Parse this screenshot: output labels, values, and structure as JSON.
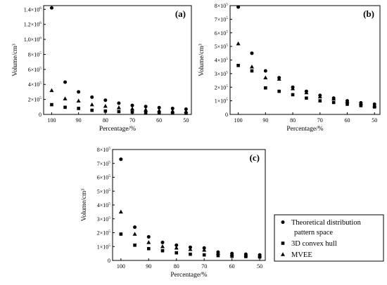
{
  "legend": [
    {
      "marker": "circle",
      "lines": [
        "Theoretical distribution",
        "pattern space"
      ]
    },
    {
      "marker": "square",
      "lines": [
        "3D convex hull"
      ]
    },
    {
      "marker": "triangle",
      "lines": [
        "MVEE"
      ]
    }
  ],
  "chart_data": [
    {
      "type": "scatter",
      "panel_label": "(a)",
      "xlabel": "Percentage/%",
      "ylabel": "Volume/cm³",
      "xlim": [
        103,
        48
      ],
      "ylim": [
        0,
        1450000
      ],
      "xticks": [
        100,
        90,
        80,
        70,
        60,
        50
      ],
      "yticks": [
        0,
        200000,
        400000,
        600000,
        800000,
        1000000,
        1200000,
        1400000
      ],
      "ytick_labels": [
        {
          "m": "0",
          "e": ""
        },
        {
          "m": "2×10",
          "e": "5"
        },
        {
          "m": "4×10",
          "e": "5"
        },
        {
          "m": "6×10",
          "e": "5"
        },
        {
          "m": "8×10",
          "e": "5"
        },
        {
          "m": "1.0×10",
          "e": "6"
        },
        {
          "m": "1.2×10",
          "e": "6"
        },
        {
          "m": "1.4×10",
          "e": "6"
        }
      ],
      "x": [
        100,
        95,
        90,
        85,
        80,
        75,
        70,
        65,
        60,
        55,
        50
      ],
      "series": [
        {
          "name": "Theoretical distribution pattern space",
          "marker": "circle",
          "values": [
            1420000,
            430000,
            300000,
            230000,
            190000,
            150000,
            120000,
            105000,
            90000,
            80000,
            70000
          ]
        },
        {
          "name": "3D convex hull",
          "marker": "square",
          "values": [
            130000,
            95000,
            80000,
            55000,
            45000,
            38000,
            32000,
            26000,
            22000,
            18000,
            15000
          ]
        },
        {
          "name": "MVEE",
          "marker": "triangle",
          "values": [
            320000,
            210000,
            180000,
            130000,
            110000,
            90000,
            75000,
            62000,
            52000,
            45000,
            40000
          ]
        }
      ]
    },
    {
      "type": "scatter",
      "panel_label": "(b)",
      "xlabel": "Percentage/%",
      "ylabel": "Volume/cm³",
      "xlim": [
        103,
        48
      ],
      "ylim": [
        0,
        800000
      ],
      "xticks": [
        100,
        90,
        80,
        70,
        60,
        50
      ],
      "yticks": [
        0,
        100000,
        200000,
        300000,
        400000,
        500000,
        600000,
        700000,
        800000
      ],
      "ytick_labels": [
        {
          "m": "0",
          "e": ""
        },
        {
          "m": "1×10",
          "e": "5"
        },
        {
          "m": "2×10",
          "e": "5"
        },
        {
          "m": "3×10",
          "e": "5"
        },
        {
          "m": "4×10",
          "e": "5"
        },
        {
          "m": "5×10",
          "e": "5"
        },
        {
          "m": "6×10",
          "e": "5"
        },
        {
          "m": "7×10",
          "e": "5"
        },
        {
          "m": "8×10",
          "e": "5"
        }
      ],
      "x": [
        100,
        95,
        90,
        85,
        80,
        75,
        70,
        65,
        60,
        55,
        50
      ],
      "series": [
        {
          "name": "Theoretical distribution pattern space",
          "marker": "circle",
          "values": [
            790000,
            450000,
            320000,
            270000,
            200000,
            170000,
            140000,
            120000,
            100000,
            85000,
            75000
          ]
        },
        {
          "name": "3D convex hull",
          "marker": "square",
          "values": [
            360000,
            320000,
            195000,
            170000,
            145000,
            120000,
            100000,
            88000,
            75000,
            65000,
            55000
          ]
        },
        {
          "name": "MVEE",
          "marker": "triangle",
          "values": [
            520000,
            350000,
            270000,
            260000,
            190000,
            160000,
            130000,
            115000,
            95000,
            80000,
            65000
          ]
        }
      ]
    },
    {
      "type": "scatter",
      "panel_label": "(c)",
      "xlabel": "Percentage/%",
      "ylabel": "Volume/cm³",
      "xlim": [
        103,
        48
      ],
      "ylim": [
        0,
        800000
      ],
      "xticks": [
        100,
        90,
        80,
        70,
        60,
        50
      ],
      "yticks": [
        0,
        100000,
        200000,
        300000,
        400000,
        500000,
        600000,
        700000,
        800000
      ],
      "ytick_labels": [
        {
          "m": "0",
          "e": ""
        },
        {
          "m": "1×10",
          "e": "5"
        },
        {
          "m": "2×10",
          "e": "5"
        },
        {
          "m": "3×10",
          "e": "5"
        },
        {
          "m": "4×10",
          "e": "5"
        },
        {
          "m": "5×10",
          "e": "5"
        },
        {
          "m": "6×10",
          "e": "5"
        },
        {
          "m": "7×10",
          "e": "5"
        },
        {
          "m": "8×10",
          "e": "5"
        }
      ],
      "x": [
        100,
        95,
        90,
        85,
        80,
        75,
        70,
        65,
        60,
        55,
        50
      ],
      "series": [
        {
          "name": "Theoretical distribution pattern space",
          "marker": "circle",
          "values": [
            730000,
            240000,
            170000,
            130000,
            110000,
            95000,
            90000,
            60000,
            50000,
            45000,
            40000
          ]
        },
        {
          "name": "3D convex hull",
          "marker": "square",
          "values": [
            190000,
            110000,
            85000,
            70000,
            55000,
            45000,
            40000,
            35000,
            30000,
            28000,
            25000
          ]
        },
        {
          "name": "MVEE",
          "marker": "triangle",
          "values": [
            350000,
            190000,
            130000,
            100000,
            90000,
            80000,
            75000,
            55000,
            45000,
            40000,
            35000
          ]
        }
      ]
    }
  ]
}
